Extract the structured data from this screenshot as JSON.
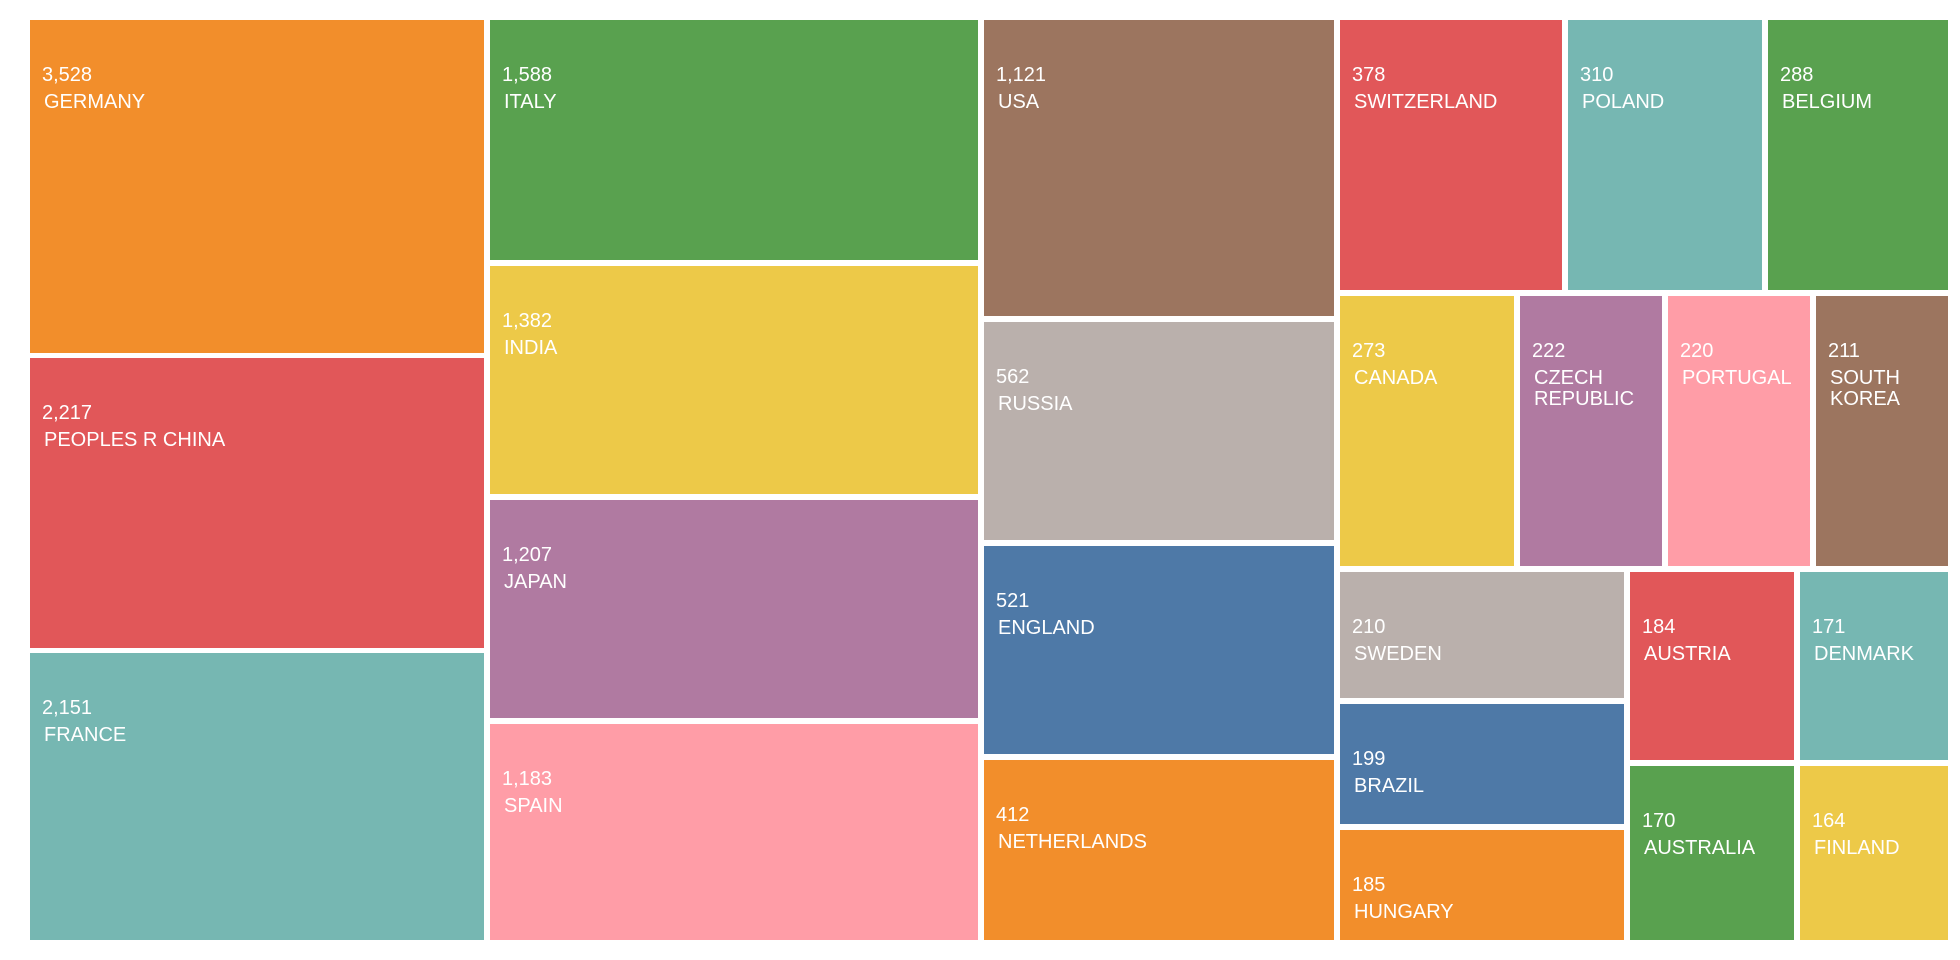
{
  "chart_data": {
    "type": "treemap",
    "items": [
      {
        "label": "GERMANY",
        "value": 3528,
        "value_text": "3,528",
        "color": "#F28E2B"
      },
      {
        "label": "PEOPLES R CHINA",
        "value": 2217,
        "value_text": "2,217",
        "color": "#E15759"
      },
      {
        "label": "FRANCE",
        "value": 2151,
        "value_text": "2,151",
        "color": "#76B7B2"
      },
      {
        "label": "ITALY",
        "value": 1588,
        "value_text": "1,588",
        "color": "#59A14F"
      },
      {
        "label": "INDIA",
        "value": 1382,
        "value_text": "1,382",
        "color": "#EDC948"
      },
      {
        "label": "JAPAN",
        "value": 1207,
        "value_text": "1,207",
        "color": "#B07AA1"
      },
      {
        "label": "SPAIN",
        "value": 1183,
        "value_text": "1,183",
        "color": "#FF9DA7"
      },
      {
        "label": "USA",
        "value": 1121,
        "value_text": "1,121",
        "color": "#9C755F"
      },
      {
        "label": "RUSSIA",
        "value": 562,
        "value_text": "562",
        "color": "#BAB0AC"
      },
      {
        "label": "ENGLAND",
        "value": 521,
        "value_text": "521",
        "color": "#4E79A7"
      },
      {
        "label": "NETHERLANDS",
        "value": 412,
        "value_text": "412",
        "color": "#F28E2B"
      },
      {
        "label": "SWITZERLAND",
        "value": 378,
        "value_text": "378",
        "color": "#E15759"
      },
      {
        "label": "POLAND",
        "value": 310,
        "value_text": "310",
        "color": "#76B7B2"
      },
      {
        "label": "BELGIUM",
        "value": 288,
        "value_text": "288",
        "color": "#59A14F"
      },
      {
        "label": "CANADA",
        "value": 273,
        "value_text": "273",
        "color": "#EDC948"
      },
      {
        "label": "CZECH REPUBLIC",
        "value": 222,
        "value_text": "222",
        "color": "#B07AA1"
      },
      {
        "label": "PORTUGAL",
        "value": 220,
        "value_text": "220",
        "color": "#FF9DA7"
      },
      {
        "label": "SOUTH KOREA",
        "value": 211,
        "value_text": "211",
        "color": "#9C755F"
      },
      {
        "label": "SWEDEN",
        "value": 210,
        "value_text": "210",
        "color": "#BAB0AC"
      },
      {
        "label": "BRAZIL",
        "value": 199,
        "value_text": "199",
        "color": "#4E79A7"
      },
      {
        "label": "HUNGARY",
        "value": 185,
        "value_text": "185",
        "color": "#F28E2B"
      },
      {
        "label": "AUSTRIA",
        "value": 184,
        "value_text": "184",
        "color": "#E15759"
      },
      {
        "label": "DENMARK",
        "value": 171,
        "value_text": "171",
        "color": "#76B7B2"
      },
      {
        "label": "AUSTRALIA",
        "value": 170,
        "value_text": "170",
        "color": "#59A14F"
      },
      {
        "label": "FINLAND",
        "value": 164,
        "value_text": "164",
        "color": "#EDC948"
      }
    ]
  }
}
